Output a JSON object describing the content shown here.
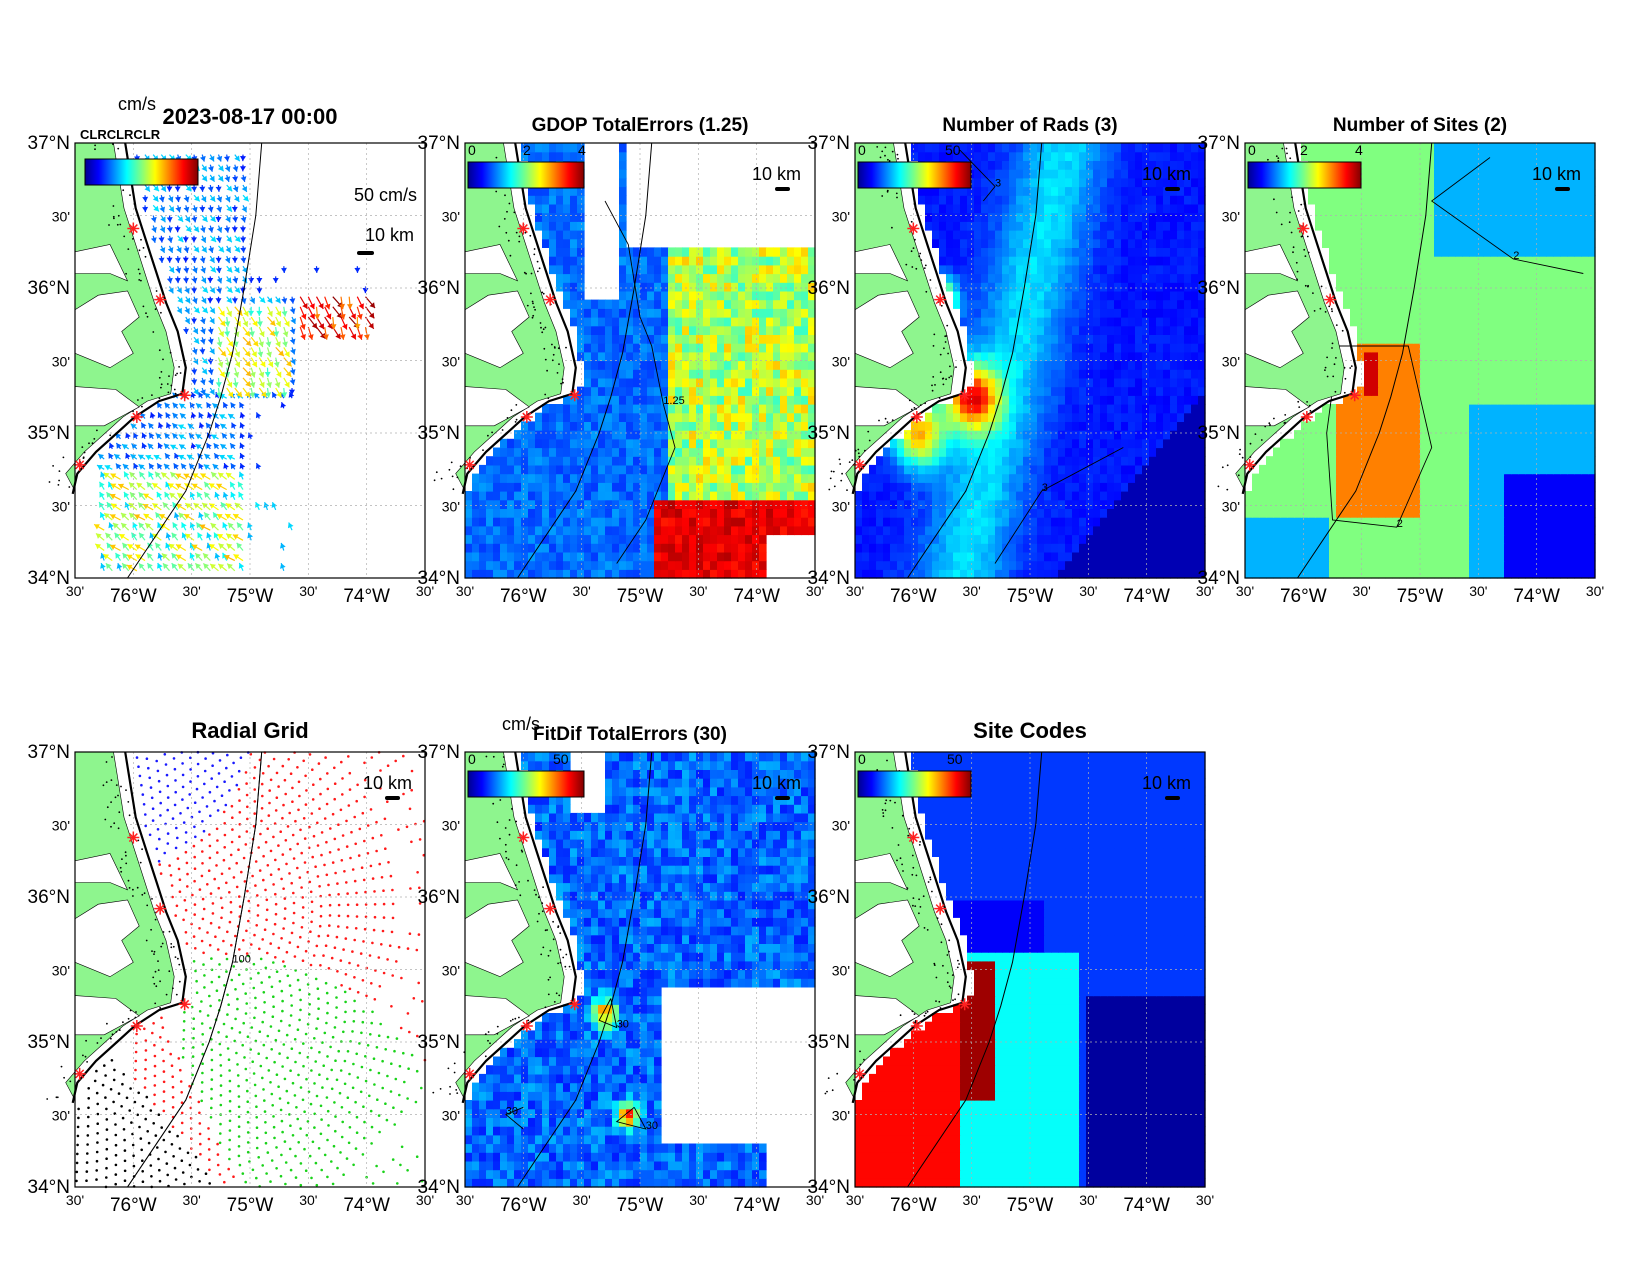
{
  "figure": {
    "time_title": "2023-08-17 00:00",
    "overlap_label": "CLRCLRCLR"
  },
  "axes_labels": {
    "lat": [
      "37°N",
      "30'",
      "36°N",
      "30'",
      "35°N",
      "30'",
      "34°N"
    ],
    "lon": [
      "30'",
      "76°W",
      "30'",
      "75°W",
      "30'",
      "74°W",
      "30'"
    ]
  },
  "colors": {
    "land": "#8ef58e",
    "sea_dark": "#00008f",
    "sea_mid": "#0a2cf0",
    "site_marker": "#ff2020",
    "grid": "#b0b0b0"
  },
  "sites": [
    {
      "lon": -76.0,
      "lat": 36.41
    },
    {
      "lon": -75.77,
      "lat": 35.92
    },
    {
      "lon": -75.56,
      "lat": 35.26
    },
    {
      "lon": -75.97,
      "lat": 35.11
    },
    {
      "lon": -76.46,
      "lat": 34.78
    }
  ],
  "panels": [
    {
      "id": "total-vectors",
      "title": "",
      "cb_unit": "cm/s",
      "cb_ticks": [],
      "scale_label": "10 km",
      "vector_label": "50 cm/s",
      "contour_label": ""
    },
    {
      "id": "gdop",
      "title": "GDOP TotalErrors (1.25)",
      "cb_unit": "",
      "cb_ticks": [
        "0",
        "2",
        "4"
      ],
      "scale_label": "10 km",
      "contour_label": "1.25"
    },
    {
      "id": "nrads",
      "title": "Number of Rads (3)",
      "cb_unit": "",
      "cb_ticks": [
        "0",
        "50"
      ],
      "scale_label": "10 km",
      "contour_label": "3"
    },
    {
      "id": "nsites",
      "title": "Number of Sites (2)",
      "cb_unit": "",
      "cb_ticks": [
        "0",
        "2",
        "4"
      ],
      "scale_label": "10 km",
      "contour_label": "2"
    },
    {
      "id": "radial-grid",
      "title": "Radial Grid",
      "cb_unit": "",
      "cb_ticks": [],
      "scale_label": "10 km",
      "contour_label": "100"
    },
    {
      "id": "fitdif",
      "title": "FitDif TotalErrors (30)",
      "cb_unit": "cm/s",
      "cb_ticks": [
        "0",
        "50"
      ],
      "scale_label": "10 km",
      "contour_label": "30"
    },
    {
      "id": "site-codes",
      "title": "Site Codes",
      "cb_unit": "",
      "cb_ticks": [
        "0",
        "50"
      ],
      "scale_label": "10 km",
      "contour_label": ""
    }
  ]
}
